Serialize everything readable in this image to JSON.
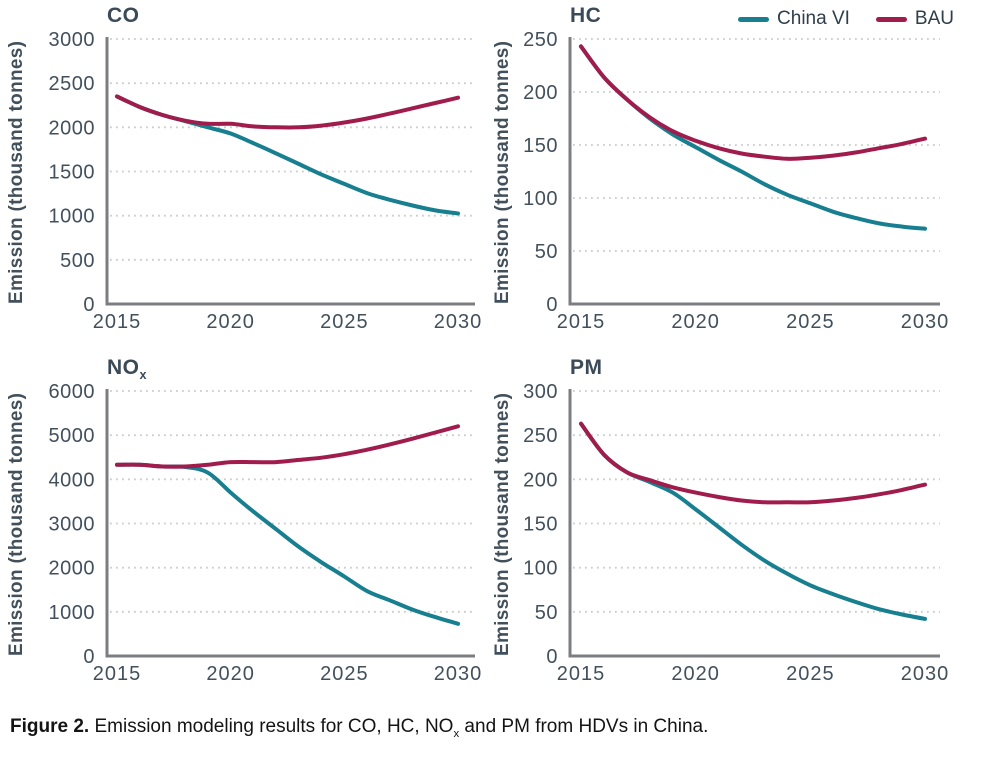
{
  "styles": {
    "china_vi_color": "#177f8f",
    "bau_color": "#a01c4c",
    "axis_color": "#7b7d80",
    "grid_color": "#cbcbcb",
    "tick_text_color": "#42505c"
  },
  "legend": {
    "position": "top-right",
    "items": [
      {
        "label": "China VI",
        "color": "#177f8f"
      },
      {
        "label": "BAU",
        "color": "#a01c4c"
      }
    ]
  },
  "figure_caption": {
    "label": "Figure 2.",
    "before_sub": " Emission modeling results for CO, HC, NO",
    "sub": "x",
    "after_sub": " and PM from HDVs in China."
  },
  "chart_data": [
    {
      "type": "line",
      "title": "CO",
      "title_sub": "",
      "ylabel": "Emission (thousand tonnes)",
      "ylim": [
        0,
        3000
      ],
      "yticks": [
        0,
        500,
        1000,
        1500,
        2000,
        2500,
        3000
      ],
      "xticks": [
        2015,
        2020,
        2025,
        2030
      ],
      "x": [
        2015,
        2016,
        2017,
        2018,
        2019,
        2020,
        2021,
        2022,
        2023,
        2024,
        2025,
        2026,
        2027,
        2028,
        2029,
        2030
      ],
      "grid": "dotted-horizontal",
      "series": [
        {
          "name": "China VI",
          "color": "#177f8f",
          "values": [
            2350,
            2230,
            2140,
            2070,
            2000,
            1930,
            1820,
            1705,
            1585,
            1465,
            1360,
            1255,
            1180,
            1115,
            1060,
            1025
          ]
        },
        {
          "name": "BAU",
          "color": "#a01c4c",
          "values": [
            2350,
            2230,
            2140,
            2075,
            2040,
            2040,
            2010,
            2000,
            2000,
            2020,
            2055,
            2100,
            2155,
            2215,
            2275,
            2335
          ]
        }
      ]
    },
    {
      "type": "line",
      "title": "HC",
      "title_sub": "",
      "ylabel": "Emission (thousand tonnes)",
      "ylim": [
        0,
        250
      ],
      "yticks": [
        0,
        50,
        100,
        150,
        200,
        250
      ],
      "xticks": [
        2015,
        2020,
        2025,
        2030
      ],
      "x": [
        2015,
        2016,
        2017,
        2018,
        2019,
        2020,
        2021,
        2022,
        2023,
        2024,
        2025,
        2026,
        2027,
        2028,
        2029,
        2030
      ],
      "grid": "dotted-horizontal",
      "series": [
        {
          "name": "China VI",
          "color": "#177f8f",
          "values": [
            243,
            214,
            193,
            175,
            160,
            148,
            136,
            125,
            113,
            103,
            95,
            87,
            81,
            76,
            73,
            71
          ]
        },
        {
          "name": "BAU",
          "color": "#a01c4c",
          "values": [
            243,
            214,
            193,
            176,
            163,
            154,
            147,
            142,
            139,
            137,
            138,
            140,
            143,
            147,
            151,
            156
          ]
        }
      ]
    },
    {
      "type": "line",
      "title": "NO",
      "title_sub": "x",
      "ylabel": "Emission (thousand tonnes)",
      "ylim": [
        0,
        6000
      ],
      "yticks": [
        0,
        1000,
        2000,
        3000,
        4000,
        5000,
        6000
      ],
      "xticks": [
        2015,
        2020,
        2025,
        2030
      ],
      "x": [
        2015,
        2016,
        2017,
        2018,
        2019,
        2020,
        2021,
        2022,
        2023,
        2024,
        2025,
        2026,
        2027,
        2028,
        2029,
        2030
      ],
      "grid": "dotted-horizontal",
      "series": [
        {
          "name": "China VI",
          "color": "#177f8f",
          "values": [
            4330,
            4330,
            4290,
            4280,
            4150,
            3700,
            3270,
            2870,
            2470,
            2120,
            1800,
            1470,
            1260,
            1050,
            880,
            730
          ]
        },
        {
          "name": "BAU",
          "color": "#a01c4c",
          "values": [
            4330,
            4330,
            4290,
            4290,
            4330,
            4390,
            4390,
            4390,
            4440,
            4490,
            4570,
            4670,
            4790,
            4920,
            5060,
            5200
          ]
        }
      ]
    },
    {
      "type": "line",
      "title": "PM",
      "title_sub": "",
      "ylabel": "Emission (thousand tonnes)",
      "ylim": [
        0,
        300
      ],
      "yticks": [
        0,
        50,
        100,
        150,
        200,
        250,
        300
      ],
      "xticks": [
        2015,
        2020,
        2025,
        2030
      ],
      "x": [
        2015,
        2016,
        2017,
        2018,
        2019,
        2020,
        2021,
        2022,
        2023,
        2024,
        2025,
        2026,
        2027,
        2028,
        2029,
        2030
      ],
      "grid": "dotted-horizontal",
      "series": [
        {
          "name": "China VI",
          "color": "#177f8f",
          "values": [
            263,
            228,
            208,
            197,
            185,
            166,
            146,
            126,
            108,
            93,
            80,
            70,
            61,
            53,
            47,
            42
          ]
        },
        {
          "name": "BAU",
          "color": "#a01c4c",
          "values": [
            263,
            228,
            208,
            199,
            191,
            185,
            180,
            176,
            174,
            174,
            174,
            176,
            179,
            183,
            188,
            194
          ]
        }
      ]
    }
  ]
}
